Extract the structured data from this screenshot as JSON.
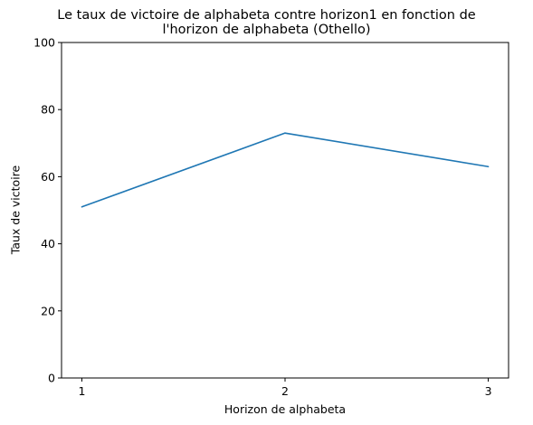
{
  "chart_data": {
    "type": "line",
    "title_lines": [
      "Le taux de victoire de alphabeta contre horizon1 en fonction de",
      "l'horizon de alphabeta (Othello)"
    ],
    "xlabel": "Horizon de alphabeta",
    "ylabel": "Taux de victoire",
    "x": [
      1,
      2,
      3
    ],
    "x_ticks": [
      "1",
      "2",
      "3"
    ],
    "y_ticks": [
      "0",
      "20",
      "40",
      "60",
      "80",
      "100"
    ],
    "ylim": [
      0,
      100
    ],
    "series": [
      {
        "values": [
          51,
          73,
          63
        ],
        "color": "#1f77b4"
      }
    ],
    "grid": false
  }
}
